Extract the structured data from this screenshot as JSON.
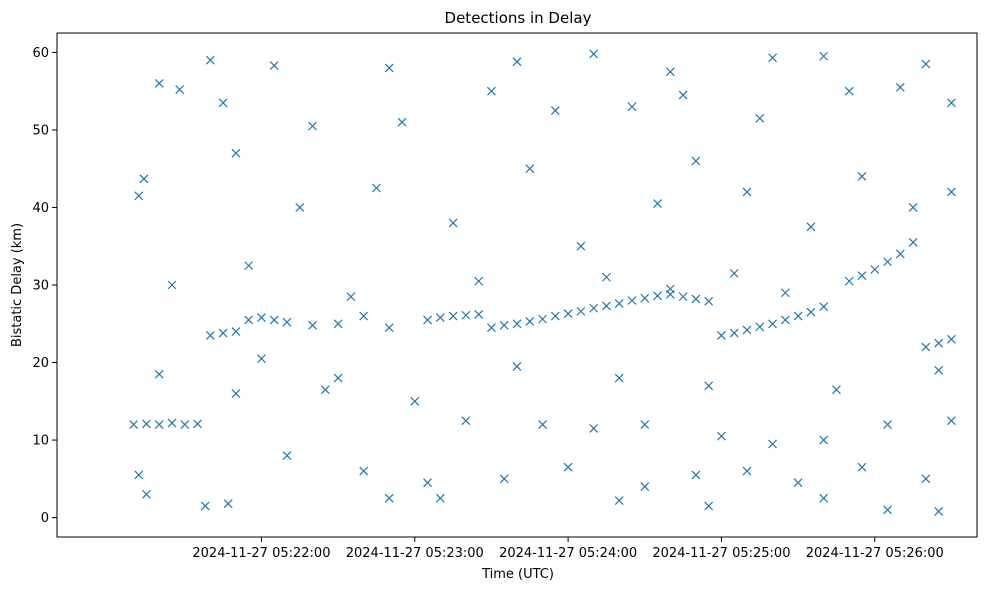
{
  "chart_data": {
    "type": "scatter",
    "title": "Detections in Delay",
    "xlabel": "Time (UTC)",
    "ylabel": "Bistatic Delay (km)",
    "x_ticks": [
      "2024-11-27 05:22:00",
      "2024-11-27 05:23:00",
      "2024-11-27 05:24:00",
      "2024-11-27 05:25:00",
      "2024-11-27 05:26:00"
    ],
    "y_ticks": [
      "0",
      "10",
      "20",
      "30",
      "40",
      "50",
      "60"
    ],
    "ylim": [
      -2.5,
      62.5
    ],
    "xlim": [
      "2024-11-27 05:20:40",
      "2024-11-27 05:26:40"
    ],
    "grid": false,
    "marker": "x",
    "color": "#1f77b4",
    "series": [
      {
        "points": [
          [
            "2024-11-27 05:21:10",
            12.0
          ],
          [
            "2024-11-27 05:21:15",
            12.1
          ],
          [
            "2024-11-27 05:21:20",
            12.0
          ],
          [
            "2024-11-27 05:21:25",
            12.2
          ],
          [
            "2024-11-27 05:21:30",
            12.0
          ],
          [
            "2024-11-27 05:21:35",
            12.1
          ],
          [
            "2024-11-27 05:21:40",
            23.5
          ],
          [
            "2024-11-27 05:21:45",
            23.8
          ],
          [
            "2024-11-27 05:21:50",
            24.0
          ],
          [
            "2024-11-27 05:21:55",
            25.5
          ],
          [
            "2024-11-27 05:22:00",
            25.8
          ],
          [
            "2024-11-27 05:22:05",
            25.5
          ],
          [
            "2024-11-27 05:22:10",
            25.2
          ],
          [
            "2024-11-27 05:22:20",
            24.8
          ],
          [
            "2024-11-27 05:22:30",
            25.0
          ],
          [
            "2024-11-27 05:22:40",
            26.0
          ],
          [
            "2024-11-27 05:22:50",
            24.5
          ],
          [
            "2024-11-27 05:23:05",
            25.5
          ],
          [
            "2024-11-27 05:23:10",
            25.8
          ],
          [
            "2024-11-27 05:23:15",
            26.0
          ],
          [
            "2024-11-27 05:23:20",
            26.1
          ],
          [
            "2024-11-27 05:23:25",
            26.2
          ],
          [
            "2024-11-27 05:23:30",
            24.5
          ],
          [
            "2024-11-27 05:23:35",
            24.8
          ],
          [
            "2024-11-27 05:23:40",
            25.0
          ],
          [
            "2024-11-27 05:23:45",
            25.3
          ],
          [
            "2024-11-27 05:23:50",
            25.6
          ],
          [
            "2024-11-27 05:23:55",
            26.0
          ],
          [
            "2024-11-27 05:24:00",
            26.3
          ],
          [
            "2024-11-27 05:24:05",
            26.6
          ],
          [
            "2024-11-27 05:24:10",
            27.0
          ],
          [
            "2024-11-27 05:24:15",
            27.3
          ],
          [
            "2024-11-27 05:24:20",
            27.6
          ],
          [
            "2024-11-27 05:24:25",
            28.0
          ],
          [
            "2024-11-27 05:24:30",
            28.3
          ],
          [
            "2024-11-27 05:24:35",
            28.6
          ],
          [
            "2024-11-27 05:24:40",
            28.8
          ],
          [
            "2024-11-27 05:24:45",
            28.5
          ],
          [
            "2024-11-27 05:24:50",
            28.2
          ],
          [
            "2024-11-27 05:24:55",
            27.9
          ],
          [
            "2024-11-27 05:25:00",
            23.5
          ],
          [
            "2024-11-27 05:25:05",
            23.8
          ],
          [
            "2024-11-27 05:25:10",
            24.2
          ],
          [
            "2024-11-27 05:25:15",
            24.6
          ],
          [
            "2024-11-27 05:25:20",
            25.0
          ],
          [
            "2024-11-27 05:25:25",
            25.5
          ],
          [
            "2024-11-27 05:25:30",
            26.0
          ],
          [
            "2024-11-27 05:25:35",
            26.5
          ],
          [
            "2024-11-27 05:25:40",
            27.2
          ],
          [
            "2024-11-27 05:25:50",
            30.5
          ],
          [
            "2024-11-27 05:25:55",
            31.2
          ],
          [
            "2024-11-27 05:26:00",
            32.0
          ],
          [
            "2024-11-27 05:26:05",
            33.0
          ],
          [
            "2024-11-27 05:26:10",
            34.0
          ],
          [
            "2024-11-27 05:26:15",
            35.5
          ],
          [
            "2024-11-27 05:26:20",
            22.0
          ],
          [
            "2024-11-27 05:26:25",
            22.5
          ],
          [
            "2024-11-27 05:26:30",
            23.0
          ],
          [
            "2024-11-27 05:21:12",
            41.5
          ],
          [
            "2024-11-27 05:21:14",
            43.7
          ],
          [
            "2024-11-27 05:21:20",
            56.0
          ],
          [
            "2024-11-27 05:21:28",
            55.2
          ],
          [
            "2024-11-27 05:21:40",
            59.0
          ],
          [
            "2024-11-27 05:21:45",
            53.5
          ],
          [
            "2024-11-27 05:21:50",
            47.0
          ],
          [
            "2024-11-27 05:22:05",
            58.3
          ],
          [
            "2024-11-27 05:22:50",
            58.0
          ],
          [
            "2024-11-27 05:23:40",
            58.8
          ],
          [
            "2024-11-27 05:24:10",
            59.8
          ],
          [
            "2024-11-27 05:24:40",
            57.5
          ],
          [
            "2024-11-27 05:25:20",
            59.3
          ],
          [
            "2024-11-27 05:25:40",
            59.5
          ],
          [
            "2024-11-27 05:26:20",
            58.5
          ],
          [
            "2024-11-27 05:21:12",
            5.5
          ],
          [
            "2024-11-27 05:21:15",
            3.0
          ],
          [
            "2024-11-27 05:21:38",
            1.5
          ],
          [
            "2024-11-27 05:21:47",
            1.8
          ],
          [
            "2024-11-27 05:22:50",
            2.5
          ],
          [
            "2024-11-27 05:23:10",
            2.5
          ],
          [
            "2024-11-27 05:24:20",
            2.2
          ],
          [
            "2024-11-27 05:24:55",
            1.5
          ],
          [
            "2024-11-27 05:25:40",
            2.5
          ],
          [
            "2024-11-27 05:26:05",
            1.0
          ],
          [
            "2024-11-27 05:26:25",
            0.8
          ],
          [
            "2024-11-27 05:22:00",
            20.5
          ],
          [
            "2024-11-27 05:22:30",
            18.0
          ],
          [
            "2024-11-27 05:23:00",
            15.0
          ],
          [
            "2024-11-27 05:23:20",
            12.5
          ],
          [
            "2024-11-27 05:23:50",
            12.0
          ],
          [
            "2024-11-27 05:24:10",
            11.5
          ],
          [
            "2024-11-27 05:24:30",
            12.0
          ],
          [
            "2024-11-27 05:25:00",
            10.5
          ],
          [
            "2024-11-27 05:25:20",
            9.5
          ],
          [
            "2024-11-27 05:25:40",
            10.0
          ],
          [
            "2024-11-27 05:26:05",
            12.0
          ],
          [
            "2024-11-27 05:26:30",
            12.5
          ],
          [
            "2024-11-27 05:22:15",
            40.0
          ],
          [
            "2024-11-27 05:22:45",
            42.5
          ],
          [
            "2024-11-27 05:23:15",
            38.0
          ],
          [
            "2024-11-27 05:23:45",
            45.0
          ],
          [
            "2024-11-27 05:24:05",
            35.0
          ],
          [
            "2024-11-27 05:24:35",
            40.5
          ],
          [
            "2024-11-27 05:24:50",
            46.0
          ],
          [
            "2024-11-27 05:25:10",
            42.0
          ],
          [
            "2024-11-27 05:25:35",
            37.5
          ],
          [
            "2024-11-27 05:25:55",
            44.0
          ],
          [
            "2024-11-27 05:26:15",
            40.0
          ],
          [
            "2024-11-27 05:26:30",
            42.0
          ],
          [
            "2024-11-27 05:22:20",
            50.5
          ],
          [
            "2024-11-27 05:22:55",
            51.0
          ],
          [
            "2024-11-27 05:23:30",
            55.0
          ],
          [
            "2024-11-27 05:23:55",
            52.5
          ],
          [
            "2024-11-27 05:24:25",
            53.0
          ],
          [
            "2024-11-27 05:24:45",
            54.5
          ],
          [
            "2024-11-27 05:25:15",
            51.5
          ],
          [
            "2024-11-27 05:25:50",
            55.0
          ],
          [
            "2024-11-27 05:26:10",
            55.5
          ],
          [
            "2024-11-27 05:26:30",
            53.5
          ],
          [
            "2024-11-27 05:22:10",
            8.0
          ],
          [
            "2024-11-27 05:22:40",
            6.0
          ],
          [
            "2024-11-27 05:23:05",
            4.5
          ],
          [
            "2024-11-27 05:23:35",
            5.0
          ],
          [
            "2024-11-27 05:24:00",
            6.5
          ],
          [
            "2024-11-27 05:24:30",
            4.0
          ],
          [
            "2024-11-27 05:24:50",
            5.5
          ],
          [
            "2024-11-27 05:25:10",
            6.0
          ],
          [
            "2024-11-27 05:25:30",
            4.5
          ],
          [
            "2024-11-27 05:25:55",
            6.5
          ],
          [
            "2024-11-27 05:26:20",
            5.0
          ],
          [
            "2024-11-27 05:21:25",
            30.0
          ],
          [
            "2024-11-27 05:21:55",
            32.5
          ],
          [
            "2024-11-27 05:22:35",
            28.5
          ],
          [
            "2024-11-27 05:23:25",
            30.5
          ],
          [
            "2024-11-27 05:24:15",
            31.0
          ],
          [
            "2024-11-27 05:24:40",
            29.5
          ],
          [
            "2024-11-27 05:25:05",
            31.5
          ],
          [
            "2024-11-27 05:25:25",
            29.0
          ],
          [
            "2024-11-27 05:21:20",
            18.5
          ],
          [
            "2024-11-27 05:21:50",
            16.0
          ],
          [
            "2024-11-27 05:22:25",
            16.5
          ],
          [
            "2024-11-27 05:23:40",
            19.5
          ],
          [
            "2024-11-27 05:24:20",
            18.0
          ],
          [
            "2024-11-27 05:24:55",
            17.0
          ],
          [
            "2024-11-27 05:25:45",
            16.5
          ],
          [
            "2024-11-27 05:26:25",
            19.0
          ]
        ]
      }
    ]
  }
}
